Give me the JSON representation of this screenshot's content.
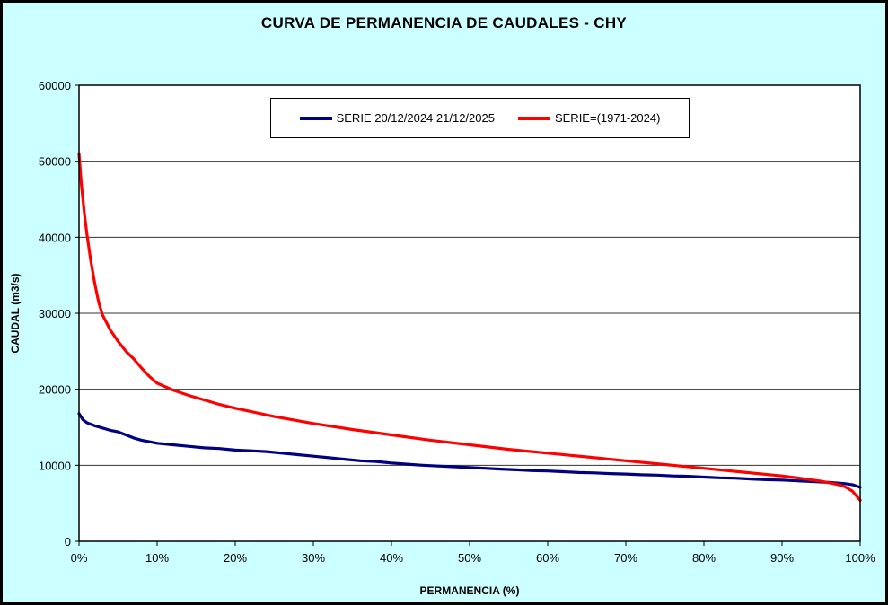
{
  "title": "CURVA DE PERMANENCIA DE CAUDALES - CHY",
  "colors": {
    "background": "#CCFFFF",
    "plot_background": "#FFFFFF",
    "gridline": "#333333",
    "axis": "#000000",
    "serie_actual": "#000080",
    "serie_historica": "#FF0000"
  },
  "chart_data": {
    "type": "line",
    "title": "CURVA DE PERMANENCIA DE CAUDALES - CHY",
    "xlabel": "PERMANENCIA (%)",
    "ylabel": "CAUDAL (m3/s)",
    "xlim": [
      0,
      100
    ],
    "ylim": [
      0,
      60000
    ],
    "x_ticks": [
      "0%",
      "10%",
      "20%",
      "30%",
      "40%",
      "50%",
      "60%",
      "70%",
      "80%",
      "90%",
      "100%"
    ],
    "y_ticks": [
      0,
      10000,
      20000,
      30000,
      40000,
      50000,
      60000
    ],
    "grid": "horizontal",
    "legend_position": "top-center-inside",
    "series": [
      {
        "name": "SERIE 20/12/2024 21/12/2025",
        "color": "#000080",
        "points": [
          [
            0,
            16800
          ],
          [
            0.5,
            16000
          ],
          [
            1,
            15600
          ],
          [
            2,
            15200
          ],
          [
            3,
            14900
          ],
          [
            4,
            14600
          ],
          [
            5,
            14400
          ],
          [
            6,
            14000
          ],
          [
            7,
            13600
          ],
          [
            8,
            13300
          ],
          [
            9,
            13100
          ],
          [
            10,
            12900
          ],
          [
            12,
            12700
          ],
          [
            14,
            12500
          ],
          [
            16,
            12300
          ],
          [
            18,
            12200
          ],
          [
            20,
            12000
          ],
          [
            22,
            11900
          ],
          [
            24,
            11800
          ],
          [
            26,
            11600
          ],
          [
            28,
            11400
          ],
          [
            30,
            11200
          ],
          [
            32,
            11000
          ],
          [
            34,
            10800
          ],
          [
            36,
            10600
          ],
          [
            38,
            10500
          ],
          [
            40,
            10300
          ],
          [
            42,
            10150
          ],
          [
            44,
            10000
          ],
          [
            46,
            9900
          ],
          [
            48,
            9800
          ],
          [
            50,
            9700
          ],
          [
            52,
            9600
          ],
          [
            54,
            9500
          ],
          [
            56,
            9400
          ],
          [
            58,
            9300
          ],
          [
            60,
            9250
          ],
          [
            62,
            9150
          ],
          [
            64,
            9050
          ],
          [
            66,
            9000
          ],
          [
            68,
            8900
          ],
          [
            70,
            8850
          ],
          [
            72,
            8750
          ],
          [
            74,
            8700
          ],
          [
            76,
            8600
          ],
          [
            78,
            8550
          ],
          [
            80,
            8450
          ],
          [
            82,
            8350
          ],
          [
            84,
            8300
          ],
          [
            86,
            8200
          ],
          [
            88,
            8100
          ],
          [
            90,
            8050
          ],
          [
            92,
            7950
          ],
          [
            94,
            7850
          ],
          [
            96,
            7750
          ],
          [
            98,
            7600
          ],
          [
            99,
            7450
          ],
          [
            100,
            7100
          ]
        ]
      },
      {
        "name": "SERIE=(1971-2024)",
        "color": "#FF0000",
        "points": [
          [
            0,
            51000
          ],
          [
            0.3,
            47000
          ],
          [
            0.7,
            43000
          ],
          [
            1,
            40500
          ],
          [
            1.5,
            37000
          ],
          [
            2,
            34000
          ],
          [
            2.5,
            31500
          ],
          [
            3,
            29800
          ],
          [
            4,
            27800
          ],
          [
            5,
            26300
          ],
          [
            6,
            25000
          ],
          [
            7,
            24000
          ],
          [
            8,
            22800
          ],
          [
            9,
            21700
          ],
          [
            10,
            20800
          ],
          [
            12,
            19900
          ],
          [
            14,
            19200
          ],
          [
            16,
            18600
          ],
          [
            18,
            18000
          ],
          [
            20,
            17500
          ],
          [
            25,
            16400
          ],
          [
            30,
            15500
          ],
          [
            35,
            14700
          ],
          [
            40,
            14000
          ],
          [
            45,
            13300
          ],
          [
            50,
            12700
          ],
          [
            55,
            12100
          ],
          [
            60,
            11600
          ],
          [
            65,
            11100
          ],
          [
            70,
            10600
          ],
          [
            75,
            10100
          ],
          [
            80,
            9600
          ],
          [
            85,
            9100
          ],
          [
            90,
            8600
          ],
          [
            93,
            8200
          ],
          [
            95,
            7900
          ],
          [
            97,
            7500
          ],
          [
            98,
            7200
          ],
          [
            99,
            6600
          ],
          [
            99.5,
            6000
          ],
          [
            100,
            5400
          ]
        ]
      }
    ]
  }
}
